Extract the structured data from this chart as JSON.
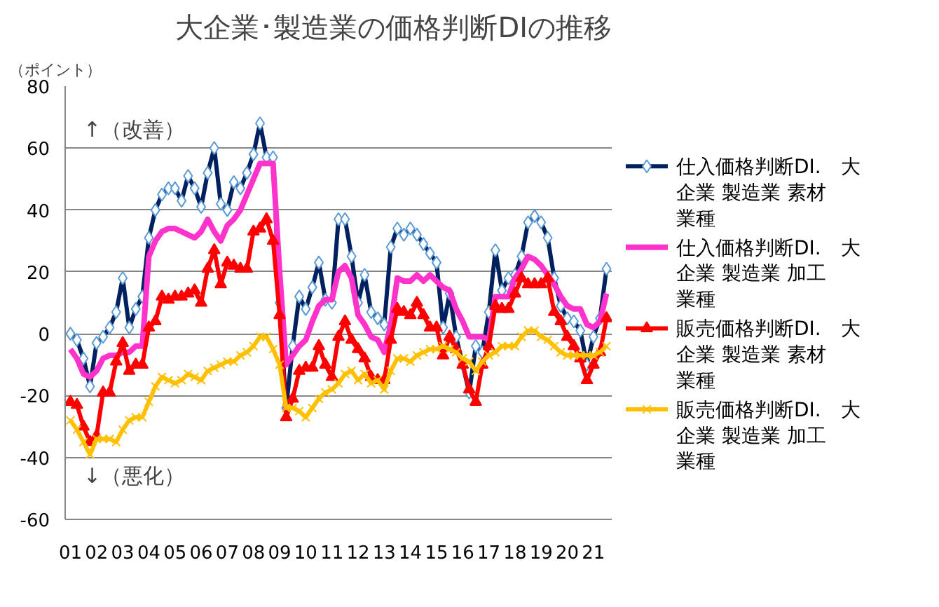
{
  "chart_data": {
    "type": "line",
    "title": "大企業･製造業の価格判断DIの推移",
    "ylabel": "（ポイント）",
    "annotations": [
      "↑（改善）",
      "↓（悪化）"
    ],
    "categories": [
      "01",
      null,
      null,
      null,
      "02",
      null,
      null,
      null,
      "03",
      null,
      null,
      null,
      "04",
      null,
      null,
      null,
      "05",
      null,
      null,
      null,
      "06",
      null,
      null,
      null,
      "07",
      null,
      null,
      null,
      "08",
      null,
      null,
      null,
      "09",
      null,
      null,
      null,
      "10",
      null,
      null,
      null,
      "11",
      null,
      null,
      null,
      "12",
      null,
      null,
      null,
      "13",
      null,
      null,
      null,
      "14",
      null,
      null,
      null,
      "15",
      null,
      null,
      null,
      "16",
      null,
      null,
      null,
      "17",
      null,
      null,
      null,
      "18",
      null,
      null,
      null,
      "19",
      null,
      null,
      null,
      "20",
      null,
      null,
      null,
      "21",
      null,
      null
    ],
    "ylim": [
      -60,
      80
    ],
    "yticks": [
      -60,
      -40,
      -20,
      0,
      20,
      40,
      60,
      80
    ],
    "grid": "y",
    "legend": "right",
    "series": [
      {
        "name": "仕入価格判断DI.　大企業 製造業 素材業種",
        "color": "#002060",
        "marker": "diamond",
        "values": [
          0,
          -2,
          -8,
          -17,
          -3,
          -1,
          2,
          7,
          18,
          2,
          8,
          12,
          31,
          40,
          45,
          47,
          47,
          43,
          51,
          47,
          41,
          52,
          60,
          42,
          40,
          49,
          47,
          52,
          58,
          68,
          57,
          57,
          10,
          -24,
          -4,
          12,
          8,
          15,
          23,
          11,
          10,
          37,
          37,
          25,
          10,
          19,
          7,
          5,
          3,
          28,
          34,
          32,
          34,
          32,
          29,
          26,
          23,
          2,
          13,
          -1,
          -10,
          -19,
          -4,
          -6,
          7,
          27,
          14,
          18,
          19,
          25,
          36,
          38,
          36,
          31,
          18,
          9,
          5,
          4,
          1,
          -10,
          -1,
          5,
          21
        ]
      },
      {
        "name": "仕入価格判断DI.　大企業 製造業 加工業種",
        "color": "#ff33cc",
        "marker": "none",
        "values": [
          -5,
          -8,
          -13,
          -14,
          -12,
          -8,
          -7,
          -7,
          -6,
          -6,
          -4,
          -4,
          25,
          30,
          33,
          34,
          34,
          33,
          32,
          31,
          33,
          37,
          33,
          30,
          35,
          37,
          40,
          45,
          50,
          55,
          55,
          55,
          20,
          -10,
          -7,
          -4,
          -2,
          4,
          9,
          11,
          11,
          20,
          22,
          18,
          6,
          3,
          -1,
          -2,
          -6,
          3,
          18,
          17,
          17,
          19,
          17,
          19,
          17,
          15,
          14,
          8,
          4,
          -1,
          -1,
          -1,
          -2,
          12,
          12,
          12,
          18,
          21,
          25,
          24,
          22,
          19,
          16,
          12,
          9,
          8,
          8,
          3,
          2,
          4,
          13
        ]
      },
      {
        "name": "販売価格判断DI.　大企業 製造業 素材業種",
        "color": "#ff0000",
        "marker": "triangle",
        "values": [
          -22,
          -23,
          -30,
          -35,
          -33,
          -19,
          -19,
          -9,
          -3,
          -12,
          -10,
          -10,
          2,
          4,
          12,
          11,
          12,
          12,
          13,
          14,
          10,
          21,
          27,
          16,
          23,
          22,
          21,
          21,
          33,
          34,
          37,
          30,
          6,
          -27,
          -21,
          -12,
          -11,
          -11,
          -4,
          -10,
          -14,
          -1,
          4,
          -2,
          -5,
          -8,
          -14,
          -15,
          -15,
          -2,
          8,
          7,
          6,
          10,
          6,
          2,
          2,
          -7,
          -1,
          -5,
          -10,
          -18,
          -22,
          -10,
          -4,
          9,
          8,
          8,
          13,
          18,
          16,
          16,
          16,
          18,
          7,
          4,
          -1,
          -4,
          -8,
          -15,
          -10,
          -6,
          5
        ]
      },
      {
        "name": "販売価格判断DI.　大企業 製造業 加工業種",
        "color": "#ffc000",
        "marker": "cross",
        "values": [
          -28,
          -31,
          -35,
          -39,
          -34,
          -34,
          -34,
          -35,
          -31,
          -28,
          -27,
          -27,
          -22,
          -17,
          -14,
          -15,
          -16,
          -15,
          -13,
          -14,
          -15,
          -12,
          -11,
          -10,
          -9,
          -9,
          -7,
          -6,
          -4,
          -1,
          -1,
          -5,
          -10,
          -24,
          -24,
          -25,
          -27,
          -24,
          -21,
          -19,
          -18,
          -16,
          -13,
          -12,
          -15,
          -13,
          -16,
          -15,
          -18,
          -12,
          -8,
          -8,
          -9,
          -7,
          -6,
          -5,
          -5,
          -4,
          -5,
          -6,
          -8,
          -9,
          -12,
          -9,
          -7,
          -6,
          -4,
          -4,
          -4,
          -1,
          1,
          1,
          -1,
          -2,
          -4,
          -6,
          -7,
          -7,
          -7,
          -7,
          -7,
          -6,
          -4
        ]
      }
    ]
  }
}
